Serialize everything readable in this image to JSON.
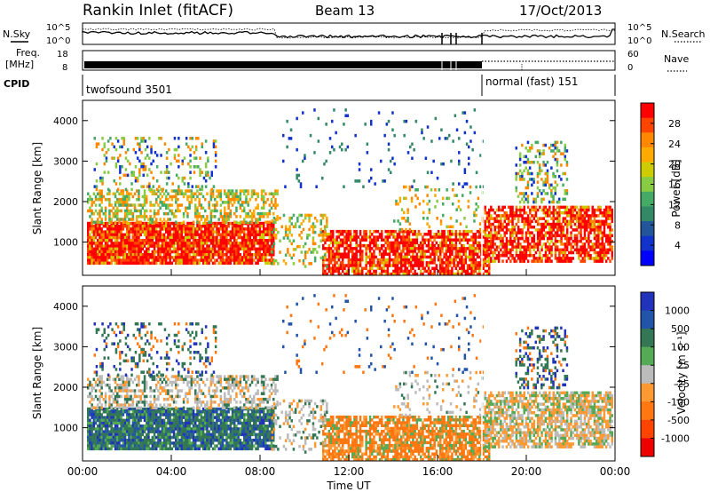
{
  "header": {
    "station": "Rankin Inlet (fitACF)",
    "beam": "Beam 13",
    "date": "17/Oct/2013"
  },
  "noise_panel": {
    "left_label": "N.Sky",
    "right_label": "N.Search",
    "left_ticks": [
      "10^5",
      "10^0"
    ],
    "right_ticks": [
      "10^5",
      "10^0"
    ]
  },
  "freq_panel": {
    "left_label_line1": "Freq.",
    "left_label_line2": "[MHz]",
    "right_label": "Nave",
    "left_ticks": [
      "18",
      "8"
    ],
    "right_ticks": [
      "60",
      "0"
    ]
  },
  "cpid_panel": {
    "label": "CPID",
    "modes": [
      {
        "name": "twofsound 3501",
        "start_h": 0,
        "end_h": 18
      },
      {
        "name": "normal (fast) 151",
        "start_h": 18,
        "end_h": 24
      }
    ]
  },
  "chart_data": [
    {
      "type": "heatmap",
      "name": "power",
      "ylabel": "Slant Range [km]",
      "yticks": [
        1000,
        2000,
        3000,
        4000
      ],
      "ylim": [
        180,
        4500
      ],
      "colorbar_label": "Power [dB]",
      "colorbar_ticks": [
        "28",
        "24",
        "20",
        "16",
        "12",
        "8",
        "4"
      ],
      "colors": [
        "#ff0000",
        "#ff4400",
        "#ff8800",
        "#ffaa00",
        "#cccc00",
        "#88cc44",
        "#44aa66",
        "#338866",
        "#225599",
        "#1133cc",
        "#0000ff"
      ]
    },
    {
      "type": "heatmap",
      "name": "velocity",
      "ylabel": "Slant Range [km]",
      "yticks": [
        1000,
        2000,
        3000,
        4000
      ],
      "ylim": [
        180,
        4500
      ],
      "colorbar_label": "Velocity [m s⁻¹]",
      "colorbar_ticks": [
        "1000",
        "500",
        "100",
        "25",
        "-25",
        "-100",
        "-500",
        "-1000"
      ],
      "colors": [
        "#2233bb",
        "#2255aa",
        "#337755",
        "#55aa55",
        "#bbbbbb",
        "#ff9933",
        "#ff7711",
        "#ff4400",
        "#ee0000"
      ]
    }
  ],
  "time_axis": {
    "label": "Time UT",
    "ticks": [
      "00:00",
      "04:00",
      "08:00",
      "12:00",
      "16:00",
      "20:00",
      "00:00"
    ]
  }
}
